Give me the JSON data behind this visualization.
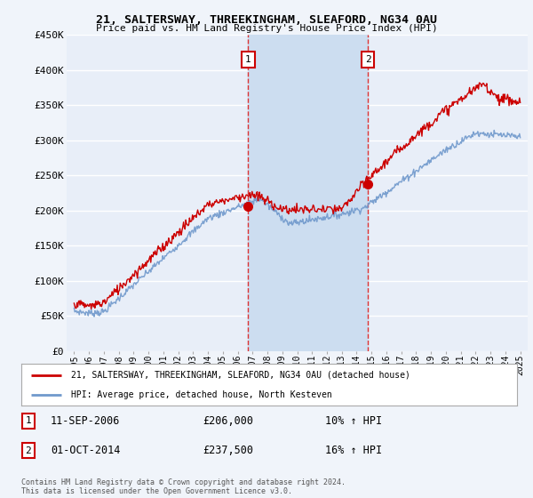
{
  "title_line1": "21, SALTERSWAY, THREEKINGHAM, SLEAFORD, NG34 0AU",
  "title_line2": "Price paid vs. HM Land Registry's House Price Index (HPI)",
  "ylabel_ticks": [
    "£0",
    "£50K",
    "£100K",
    "£150K",
    "£200K",
    "£250K",
    "£300K",
    "£350K",
    "£400K",
    "£450K"
  ],
  "ytick_values": [
    0,
    50000,
    100000,
    150000,
    200000,
    250000,
    300000,
    350000,
    400000,
    450000
  ],
  "ylim": [
    0,
    450000
  ],
  "xlim_start": 1994.5,
  "xlim_end": 2025.5,
  "background_color": "#f0f4fa",
  "plot_bg_color": "#e8eef8",
  "grid_color": "#ffffff",
  "span_color": "#ccddf0",
  "red_line_color": "#cc0000",
  "blue_line_color": "#7099cc",
  "marker1_x": 2006.7,
  "marker1_y": 206000,
  "marker2_x": 2014.75,
  "marker2_y": 237500,
  "vline1_x": 2006.7,
  "vline2_x": 2014.75,
  "legend_red_label": "21, SALTERSWAY, THREEKINGHAM, SLEAFORD, NG34 0AU (detached house)",
  "legend_blue_label": "HPI: Average price, detached house, North Kesteven",
  "ann1_date": "11-SEP-2006",
  "ann1_price": "£206,000",
  "ann1_hpi": "10% ↑ HPI",
  "ann2_date": "01-OCT-2014",
  "ann2_price": "£237,500",
  "ann2_hpi": "16% ↑ HPI",
  "footer": "Contains HM Land Registry data © Crown copyright and database right 2024.\nThis data is licensed under the Open Government Licence v3.0."
}
